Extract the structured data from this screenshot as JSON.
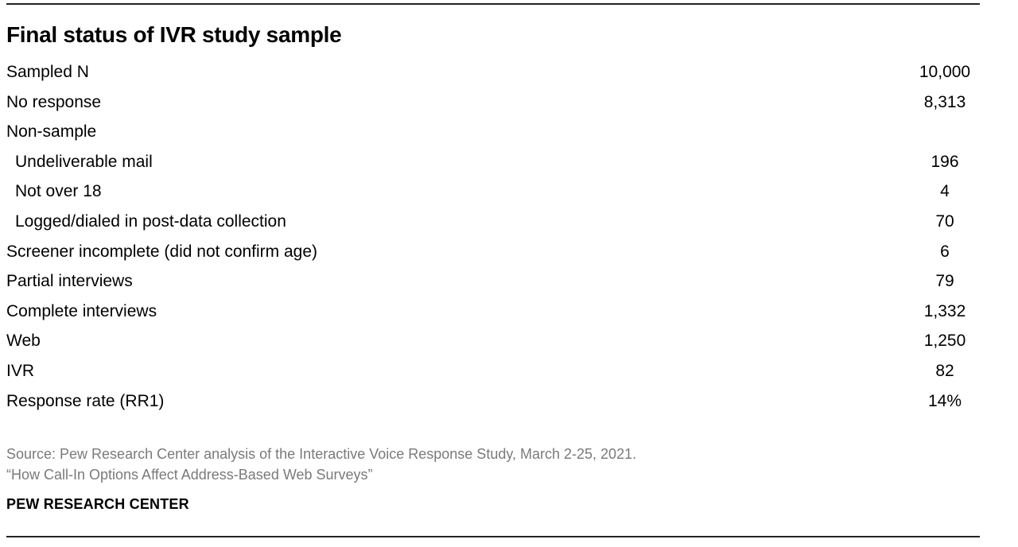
{
  "title": "Final status of IVR study sample",
  "rows": [
    {
      "label": "Sampled N",
      "value": "10,000"
    },
    {
      "label": "No response",
      "value": "8,313"
    },
    {
      "label": "Non-sample",
      "value": ""
    },
    {
      "label": "Undeliverable mail",
      "value": "196"
    },
    {
      "label": "Not over 18",
      "value": "4"
    },
    {
      "label": "Logged/dialed in post-data collection",
      "value": "70"
    },
    {
      "label": "Screener incomplete (did not confirm age)",
      "value": "6"
    },
    {
      "label": "Partial interviews",
      "value": "79"
    },
    {
      "label": "Complete interviews",
      "value": "1,332"
    },
    {
      "label": "Web",
      "value": "1,250"
    },
    {
      "label": "IVR",
      "value": "82"
    },
    {
      "label": "Response rate (RR1)",
      "value": "14%"
    }
  ],
  "source": {
    "line1": "Source: Pew Research Center analysis of the Interactive Voice Response Study, March 2-25, 2021.",
    "line2": "“How Call-In Options Affect Address-Based Web Surveys”"
  },
  "brand": "PEW RESEARCH CENTER"
}
